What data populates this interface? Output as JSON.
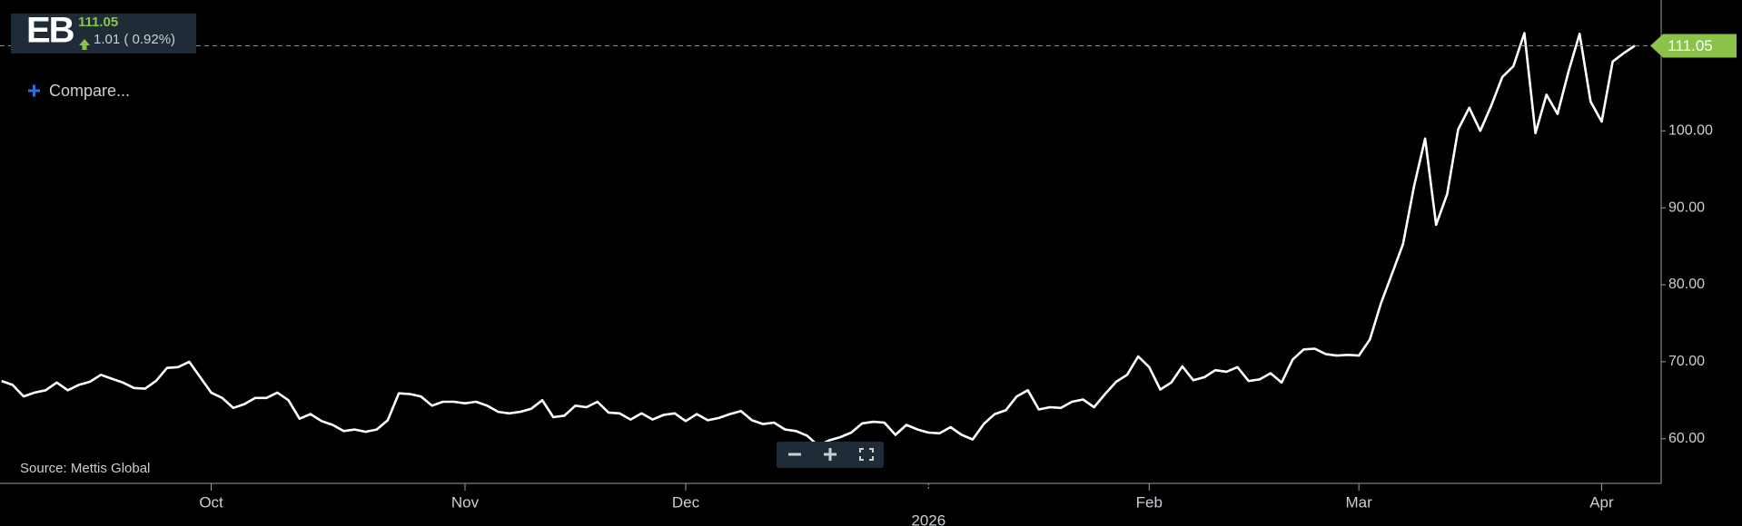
{
  "header": {
    "symbol": "EB",
    "change": "1.01 ( 0.92%)",
    "compare": "Compare...",
    "source": "Source: Mettis Global"
  },
  "chart_data": {
    "type": "line",
    "color": "#ffffff",
    "categories": [
      null,
      null,
      null,
      null,
      null,
      null,
      null,
      null,
      null,
      null,
      null,
      null,
      null,
      null,
      null,
      null,
      null,
      null,
      null,
      "Oct",
      null,
      null,
      null,
      null,
      null,
      null,
      null,
      null,
      null,
      null,
      null,
      null,
      null,
      null,
      null,
      null,
      null,
      null,
      null,
      null,
      null,
      null,
      "Nov",
      null,
      null,
      null,
      null,
      null,
      null,
      null,
      null,
      null,
      null,
      null,
      null,
      null,
      null,
      null,
      null,
      null,
      null,
      null,
      "Dec",
      null,
      null,
      null,
      null,
      null,
      null,
      null,
      null,
      null,
      null,
      null,
      null,
      null,
      null,
      null,
      null,
      null,
      null,
      null,
      null,
      null,
      "2026",
      null,
      null,
      null,
      null,
      null,
      null,
      null,
      null,
      null,
      null,
      null,
      null,
      null,
      null,
      null,
      null,
      null,
      null,
      null,
      "Feb",
      null,
      null,
      null,
      null,
      null,
      null,
      null,
      null,
      null,
      null,
      null,
      null,
      null,
      null,
      null,
      null,
      null,
      null,
      "Mar",
      null,
      null,
      null,
      null,
      null,
      null,
      null,
      null,
      null,
      null,
      null,
      null,
      null,
      null,
      null,
      null,
      null,
      null,
      null,
      null,
      null,
      "Apr",
      null,
      null,
      null
    ],
    "values": [
      67.5,
      67,
      65.5,
      66,
      66.3,
      67.3,
      66.3,
      67,
      67.4,
      68.3,
      67.8,
      67.3,
      66.6,
      66.5,
      67.5,
      69.2,
      69.3,
      70,
      68,
      66,
      65.3,
      64,
      64.5,
      65.3,
      65.3,
      66,
      65,
      62.6,
      63.2,
      62.3,
      61.8,
      61,
      61.2,
      60.9,
      61.2,
      62.4,
      65.9,
      65.8,
      65.5,
      64.3,
      64.8,
      64.8,
      64.6,
      64.8,
      64.3,
      63.5,
      63.3,
      63.5,
      63.9,
      65,
      62.8,
      63,
      64.3,
      64.1,
      64.8,
      63.4,
      63.3,
      62.5,
      63.3,
      62.5,
      63.1,
      63.3,
      62.3,
      63.2,
      62.4,
      62.7,
      63.2,
      63.6,
      62.4,
      61.9,
      62.1,
      61.2,
      61,
      60.4,
      59.1,
      59.8,
      60.2,
      60.8,
      62,
      62.2,
      62.1,
      60.5,
      61.8,
      61.2,
      60.8,
      60.7,
      61.5,
      60.5,
      59.9,
      61.9,
      63.2,
      63.7,
      65.5,
      66.3,
      63.8,
      64.1,
      64,
      64.8,
      65.1,
      64.1,
      65.8,
      67.4,
      68.3,
      70.7,
      69.3,
      66.4,
      67.3,
      69.4,
      67.6,
      68,
      68.9,
      68.7,
      69.3,
      67.5,
      67.7,
      68.5,
      67.3,
      70.3,
      71.6,
      71.7,
      71,
      70.8,
      70.9,
      70.8,
      72.9,
      77.6,
      81.4,
      85.3,
      92.8,
      99,
      87.8,
      91.8,
      100.2,
      103,
      100,
      103.3,
      107,
      108.4,
      112.7,
      99.7,
      104.7,
      102.2,
      107.7,
      112.6,
      103.8,
      101.2,
      109,
      110.1,
      111.05
    ],
    "ylim": [
      54.2,
      117
    ],
    "yticks": [
      {
        "value": 60,
        "label": "60.00"
      },
      {
        "value": 70,
        "label": "70.00"
      },
      {
        "value": 80,
        "label": "80.00"
      },
      {
        "value": 90,
        "label": "90.00"
      },
      {
        "value": 100,
        "label": "100.00"
      }
    ]
  }
}
